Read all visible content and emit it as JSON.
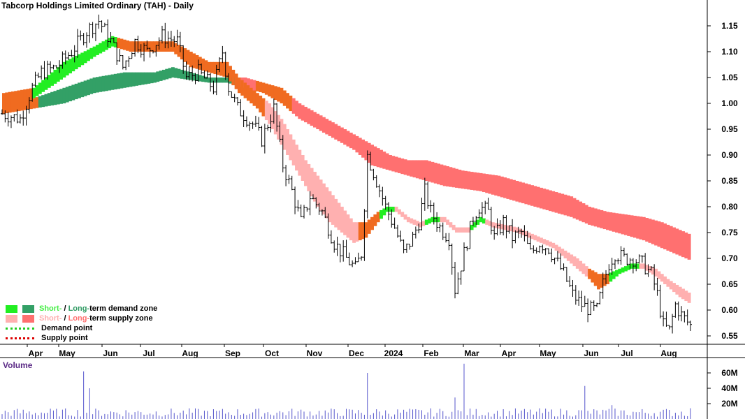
{
  "title": "Tabcorp Holdings Limited Ordinary (TAH) - Daily",
  "volume_label": "Volume",
  "legend": {
    "demand_short": "Short-",
    "demand_sep": " / ",
    "demand_long": "Long-",
    "demand_rest": "term demand zone",
    "supply_short": "Short-",
    "supply_sep": " / ",
    "supply_long": "Long-",
    "supply_rest": "term supply zone",
    "demand_point": "Demand point",
    "supply_point": "Supply point"
  },
  "colors": {
    "short_demand": "#22ee22",
    "long_demand": "#33a066",
    "short_supply": "#ffb0b0",
    "long_supply": "#ff7070",
    "transition": "#f06b20",
    "candle": "#000000",
    "volume": "#5555cc",
    "legend_short_text": "#44ee44",
    "legend_long_text": "#2e9a62",
    "legend_short_supply_text": "#ffb0b0",
    "legend_long_supply_text": "#ff7070",
    "demand_point": "#22cc22",
    "supply_point": "#dd0000"
  },
  "chart_data": {
    "type": "candlestick",
    "x_labels": [
      "Apr",
      "May",
      "Jun",
      "Jul",
      "Aug",
      "Sep",
      "Oct",
      "Nov",
      "Dec",
      "2024",
      "Feb",
      "Mar",
      "Apr",
      "May",
      "Jun",
      "Jul",
      "Aug"
    ],
    "y_ticks": [
      "1.15",
      "1.10",
      "1.05",
      "1.00",
      "0.95",
      "0.90",
      "0.85",
      "0.80",
      "0.75",
      "0.70",
      "0.65",
      "0.60",
      "0.55"
    ],
    "ylim": [
      0.52,
      1.19
    ],
    "volume_ticks": [
      "60M",
      "40M",
      "20M"
    ],
    "volume_lim": [
      0,
      75
    ],
    "close_path": [
      [
        0,
        0.98
      ],
      [
        6,
        0.97
      ],
      [
        10,
        1.03
      ],
      [
        13,
        1.06
      ],
      [
        18,
        1.07
      ],
      [
        23,
        1.1
      ],
      [
        28,
        1.14
      ],
      [
        32,
        1.16
      ],
      [
        36,
        1.12
      ],
      [
        40,
        1.07
      ],
      [
        44,
        1.12
      ],
      [
        48,
        1.1
      ],
      [
        53,
        1.13
      ],
      [
        58,
        1.12
      ],
      [
        61,
        1.05
      ],
      [
        65,
        1.06
      ],
      [
        70,
        1.03
      ],
      [
        73,
        1.1
      ],
      [
        75,
        1.03
      ],
      [
        78,
        0.99
      ],
      [
        83,
        0.96
      ],
      [
        86,
        0.93
      ],
      [
        90,
        0.99
      ],
      [
        93,
        0.88
      ],
      [
        96,
        0.83
      ],
      [
        99,
        0.77
      ],
      [
        102,
        0.82
      ],
      [
        106,
        0.79
      ],
      [
        110,
        0.73
      ],
      [
        114,
        0.7
      ],
      [
        117,
        0.68
      ],
      [
        119,
        0.71
      ],
      [
        121,
        0.9
      ],
      [
        124,
        0.85
      ],
      [
        127,
        0.8
      ],
      [
        130,
        0.76
      ],
      [
        133,
        0.71
      ],
      [
        136,
        0.74
      ],
      [
        138,
        0.77
      ],
      [
        140,
        0.83
      ],
      [
        142,
        0.79
      ],
      [
        145,
        0.76
      ],
      [
        148,
        0.74
      ],
      [
        150,
        0.64
      ],
      [
        153,
        0.71
      ],
      [
        156,
        0.78
      ],
      [
        158,
        0.8
      ],
      [
        161,
        0.79
      ],
      [
        163,
        0.74
      ],
      [
        166,
        0.77
      ],
      [
        169,
        0.74
      ],
      [
        172,
        0.75
      ],
      [
        175,
        0.71
      ],
      [
        178,
        0.73
      ],
      [
        181,
        0.72
      ],
      [
        184,
        0.69
      ],
      [
        186,
        0.67
      ],
      [
        189,
        0.63
      ],
      [
        192,
        0.61
      ],
      [
        195,
        0.6
      ],
      [
        197,
        0.6
      ],
      [
        199,
        0.65
      ],
      [
        201,
        0.69
      ],
      [
        203,
        0.71
      ],
      [
        206,
        0.7
      ],
      [
        209,
        0.7
      ],
      [
        212,
        0.69
      ],
      [
        215,
        0.67
      ],
      [
        217,
        0.63
      ],
      [
        219,
        0.57
      ],
      [
        221,
        0.56
      ],
      [
        223,
        0.61
      ],
      [
        225,
        0.59
      ],
      [
        228,
        0.57
      ]
    ],
    "short_zone": [
      [
        0,
        0.99,
        1.02
      ],
      [
        10,
        1.01,
        1.03
      ],
      [
        20,
        1.05,
        1.08
      ],
      [
        30,
        1.09,
        1.11
      ],
      [
        36,
        1.11,
        1.13
      ],
      [
        42,
        1.1,
        1.12
      ],
      [
        50,
        1.1,
        1.12
      ],
      [
        56,
        1.1,
        1.12
      ],
      [
        62,
        1.07,
        1.1
      ],
      [
        68,
        1.06,
        1.08
      ],
      [
        74,
        1.05,
        1.08
      ],
      [
        78,
        1.02,
        1.05
      ],
      [
        84,
        0.99,
        1.02
      ],
      [
        88,
        0.96,
        1.0
      ],
      [
        92,
        0.92,
        0.97
      ],
      [
        96,
        0.88,
        0.93
      ],
      [
        100,
        0.84,
        0.89
      ],
      [
        104,
        0.8,
        0.86
      ],
      [
        108,
        0.77,
        0.83
      ],
      [
        112,
        0.75,
        0.8
      ],
      [
        116,
        0.73,
        0.77
      ],
      [
        120,
        0.74,
        0.77
      ],
      [
        124,
        0.77,
        0.79
      ],
      [
        127,
        0.79,
        0.8
      ],
      [
        130,
        0.79,
        0.8
      ],
      [
        134,
        0.77,
        0.78
      ],
      [
        138,
        0.76,
        0.77
      ],
      [
        142,
        0.77,
        0.78
      ],
      [
        146,
        0.77,
        0.78
      ],
      [
        150,
        0.75,
        0.76
      ],
      [
        154,
        0.75,
        0.76
      ],
      [
        158,
        0.77,
        0.78
      ],
      [
        162,
        0.76,
        0.77
      ],
      [
        166,
        0.755,
        0.765
      ],
      [
        170,
        0.75,
        0.76
      ],
      [
        174,
        0.74,
        0.75
      ],
      [
        178,
        0.73,
        0.74
      ],
      [
        182,
        0.72,
        0.73
      ],
      [
        186,
        0.7,
        0.715
      ],
      [
        190,
        0.68,
        0.7
      ],
      [
        194,
        0.66,
        0.68
      ],
      [
        197,
        0.64,
        0.67
      ],
      [
        200,
        0.65,
        0.67
      ],
      [
        204,
        0.67,
        0.68
      ],
      [
        208,
        0.68,
        0.69
      ],
      [
        212,
        0.68,
        0.69
      ],
      [
        216,
        0.665,
        0.68
      ],
      [
        220,
        0.645,
        0.66
      ],
      [
        224,
        0.625,
        0.645
      ],
      [
        228,
        0.61,
        0.63
      ]
    ],
    "long_zone": [
      [
        0,
        0.98,
        1.0
      ],
      [
        10,
        0.99,
        1.01
      ],
      [
        20,
        1.0,
        1.03
      ],
      [
        30,
        1.02,
        1.05
      ],
      [
        40,
        1.03,
        1.06
      ],
      [
        50,
        1.04,
        1.06
      ],
      [
        56,
        1.05,
        1.07
      ],
      [
        62,
        1.045,
        1.06
      ],
      [
        68,
        1.04,
        1.05
      ],
      [
        74,
        1.04,
        1.05
      ],
      [
        80,
        1.03,
        1.05
      ],
      [
        86,
        1.02,
        1.04
      ],
      [
        92,
        1.0,
        1.03
      ],
      [
        98,
        0.97,
        1.0
      ],
      [
        104,
        0.95,
        0.98
      ],
      [
        110,
        0.93,
        0.96
      ],
      [
        116,
        0.91,
        0.94
      ],
      [
        122,
        0.88,
        0.92
      ],
      [
        128,
        0.87,
        0.9
      ],
      [
        134,
        0.86,
        0.89
      ],
      [
        140,
        0.85,
        0.89
      ],
      [
        146,
        0.84,
        0.88
      ],
      [
        152,
        0.835,
        0.87
      ],
      [
        158,
        0.83,
        0.865
      ],
      [
        164,
        0.82,
        0.86
      ],
      [
        170,
        0.81,
        0.85
      ],
      [
        176,
        0.8,
        0.84
      ],
      [
        182,
        0.79,
        0.83
      ],
      [
        188,
        0.78,
        0.82
      ],
      [
        194,
        0.765,
        0.8
      ],
      [
        200,
        0.755,
        0.79
      ],
      [
        206,
        0.745,
        0.785
      ],
      [
        212,
        0.735,
        0.78
      ],
      [
        218,
        0.72,
        0.77
      ],
      [
        224,
        0.705,
        0.755
      ],
      [
        228,
        0.695,
        0.745
      ]
    ],
    "volume_spikes": [
      [
        27,
        62
      ],
      [
        29,
        40
      ],
      [
        121,
        60
      ],
      [
        153,
        72
      ],
      [
        150,
        28
      ],
      [
        193,
        43
      ],
      [
        202,
        18
      ],
      [
        228,
        14
      ]
    ],
    "volume_baseline": [
      3,
      14
    ]
  }
}
